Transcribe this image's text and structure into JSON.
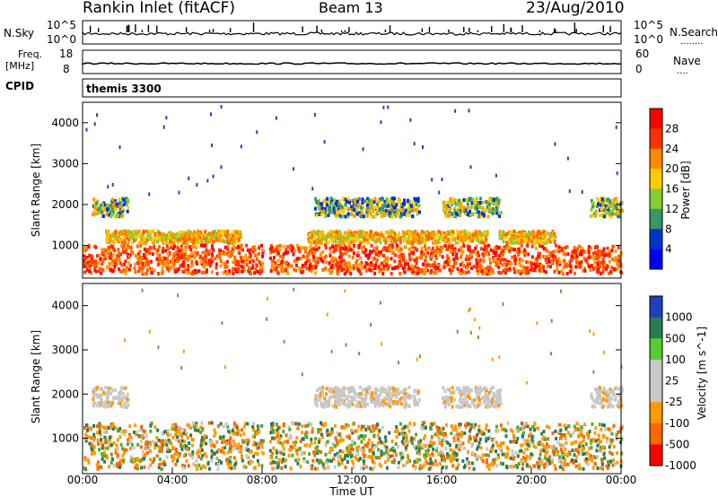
{
  "header": {
    "station": "Rankin Inlet (fitACF)",
    "beam": "Beam 13",
    "date": "23/Aug/2010"
  },
  "nsky_panel": {
    "left_label": "N.Sky",
    "right_label": "N.Search",
    "right_marker": "........",
    "top_tick": "10^5",
    "bottom_tick": "10^0"
  },
  "freq_panel": {
    "left_label_line1": "Freq.",
    "left_label_line2": "[MHz]",
    "left_ticks": [
      "18",
      "8"
    ],
    "right_label": "Nave",
    "right_marker": "....",
    "right_ticks": [
      "60",
      "0"
    ]
  },
  "cpid_panel": {
    "left_label": "CPID",
    "program": "themis 3300"
  },
  "chart_data": [
    {
      "type": "heatmap",
      "panel": "power",
      "ylabel": "Slant Range [km]",
      "yticks": [
        "4000",
        "3000",
        "2000",
        "1000"
      ],
      "ylim": [
        200,
        4500
      ],
      "colorbar_label": "Power [dB]",
      "colorbar_ticks": [
        "28",
        "24",
        "20",
        "16",
        "12",
        "8",
        "4"
      ],
      "colorbar_colors": [
        "#ff0000",
        "#ff3300",
        "#ff8800",
        "#ffcc00",
        "#88cc33",
        "#339966",
        "#0033cc",
        "#0000ff"
      ],
      "echo_bands": [
        {
          "range_km": [
            1700,
            2150
          ],
          "hours": [
            [
              0.4,
              2.0
            ],
            [
              10.3,
              15.0
            ],
            [
              16.0,
              18.6
            ],
            [
              22.6,
              24.0
            ]
          ]
        },
        {
          "range_km": [
            1050,
            1350
          ],
          "hours": [
            [
              1.0,
              7.0
            ],
            [
              10.0,
              18.0
            ],
            [
              18.5,
              21.0
            ]
          ]
        },
        {
          "range_km": [
            300,
            1000
          ],
          "hours": [
            [
              0.0,
              8.0
            ],
            [
              8.3,
              24.0
            ]
          ]
        }
      ]
    },
    {
      "type": "heatmap",
      "panel": "velocity",
      "ylabel": "Slant Range [km]",
      "yticks": [
        "4000",
        "3000",
        "2000",
        "1000"
      ],
      "ylim": [
        200,
        4500
      ],
      "xlabel": "Time UT",
      "xticks": [
        "00:00",
        "04:00",
        "08:00",
        "12:00",
        "16:00",
        "20:00",
        "00:00"
      ],
      "xlim": [
        0,
        24
      ],
      "colorbar_label": "Velocity [m s^-1]",
      "colorbar_ticks": [
        "1000",
        "500",
        "100",
        "25",
        "-25",
        "-100",
        "-500",
        "-1000"
      ],
      "colorbar_colors": [
        "#1f3fbf",
        "#2a7a55",
        "#55cc33",
        "#c8c8c8",
        "#c8c8c8",
        "#ff9900",
        "#ff6600",
        "#ff0000"
      ],
      "echo_bands": [
        {
          "range_km": [
            1700,
            2150
          ],
          "hours": [
            [
              0.4,
              2.0
            ],
            [
              10.3,
              15.0
            ],
            [
              16.0,
              18.6
            ],
            [
              22.6,
              24.0
            ]
          ]
        },
        {
          "range_km": [
            300,
            1350
          ],
          "hours": [
            [
              0.0,
              8.0
            ],
            [
              8.3,
              24.0
            ]
          ]
        }
      ]
    }
  ]
}
